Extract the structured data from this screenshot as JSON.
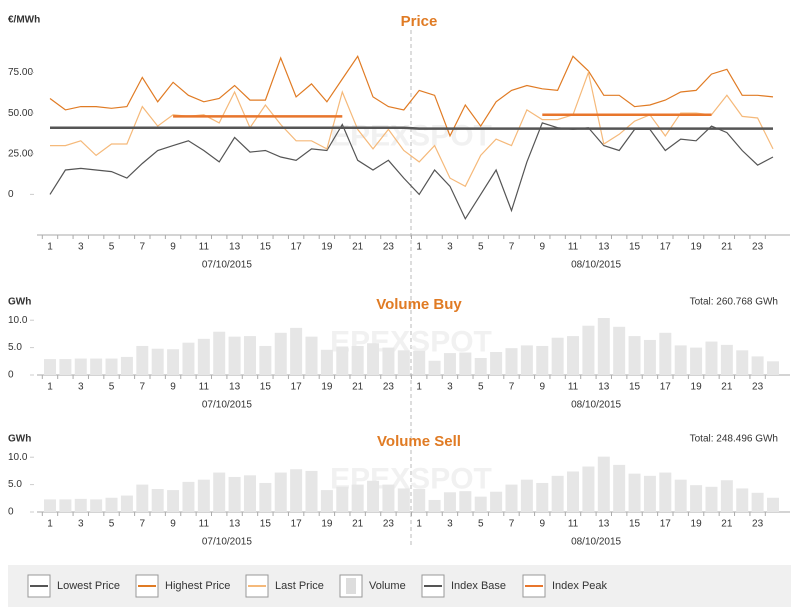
{
  "chart_data": [
    {
      "type": "line",
      "title": "Price",
      "y_label": "€/MWh",
      "watermark": "EPEXSPOT",
      "categories": [
        "1",
        null,
        "3",
        null,
        "5",
        null,
        "7",
        null,
        "9",
        null,
        "11",
        null,
        "13",
        null,
        "15",
        null,
        "17",
        null,
        "19",
        null,
        "21",
        null,
        "23",
        null,
        "1",
        null,
        "3",
        null,
        "5",
        null,
        "7",
        null,
        "9",
        null,
        "11",
        null,
        "13",
        null,
        "15",
        null,
        "17",
        null,
        "19",
        null,
        "21",
        null,
        "23",
        null
      ],
      "groups": [
        "07/10/2015",
        "08/10/2015"
      ],
      "ylim": [
        -25,
        95
      ],
      "yticks": [
        0,
        {
          "value": 25,
          "label": "25.00"
        },
        {
          "value": 50,
          "label": "50.00"
        },
        {
          "value": 75,
          "label": "75.00"
        }
      ],
      "series": [
        {
          "name": "Lowest Price",
          "color": "#555555",
          "values": [
            0,
            15,
            16,
            15,
            14,
            10,
            19,
            27,
            30,
            33,
            27,
            20,
            35,
            26,
            27,
            23,
            21,
            28,
            27,
            43,
            21,
            15,
            21,
            10,
            0,
            15,
            5,
            -15,
            0,
            15,
            -10,
            20,
            44,
            41,
            40,
            41,
            30,
            27,
            40,
            40,
            27,
            34,
            33,
            42,
            38,
            27,
            18,
            23
          ]
        },
        {
          "name": "Highest Price",
          "color": "#e07b24",
          "values": [
            59,
            52,
            54,
            54,
            53,
            54,
            72,
            57,
            69,
            61,
            57,
            59,
            67,
            58,
            58,
            84,
            60,
            68,
            57,
            71,
            85,
            60,
            54,
            52,
            64,
            61,
            36,
            55,
            42,
            57,
            64,
            67,
            65,
            64,
            85,
            76,
            61,
            61,
            54,
            55,
            58,
            63,
            64,
            74,
            77,
            61,
            61,
            60
          ]
        },
        {
          "name": "Last Price",
          "color": "#f5b97a",
          "values": [
            30,
            30,
            33,
            24,
            31,
            31,
            54,
            42,
            49,
            48,
            49,
            44,
            63,
            41,
            55,
            43,
            33,
            33,
            28,
            63,
            40,
            28,
            40,
            27,
            20,
            30,
            10,
            5,
            24,
            34,
            30,
            52,
            46,
            46,
            49,
            75,
            31,
            37,
            45,
            49,
            36,
            50,
            50,
            49,
            61,
            48,
            47,
            28
          ]
        },
        {
          "name": "Index Base",
          "color": "#555555",
          "values": [
            41,
            41,
            41,
            41,
            41,
            41,
            41,
            41,
            41,
            41,
            41,
            41,
            41,
            41,
            41,
            41,
            41,
            41,
            41,
            41,
            41,
            41,
            41,
            41,
            40.5,
            40.5,
            40.5,
            40.5,
            40.5,
            40.5,
            40.5,
            40.5,
            40.5,
            40.5,
            40.5,
            40.5,
            40.5,
            40.5,
            40.5,
            40.5,
            40.5,
            40.5,
            40.5,
            40.5,
            40.5,
            40.5,
            40.5,
            40.5
          ]
        },
        {
          "name": "Index Peak",
          "color": "#e8762c",
          "values": [
            null,
            null,
            null,
            null,
            null,
            null,
            null,
            null,
            48,
            48,
            48,
            48,
            48,
            48,
            48,
            48,
            48,
            48,
            48,
            48,
            null,
            null,
            null,
            null,
            null,
            null,
            null,
            null,
            null,
            null,
            null,
            null,
            49,
            49,
            49,
            49,
            49,
            49,
            49,
            49,
            49,
            49,
            49,
            49,
            null,
            null,
            null,
            null
          ]
        }
      ]
    },
    {
      "type": "bar",
      "title": "Volume Buy",
      "y_label": "GWh",
      "watermark": "EPEXSPOT",
      "annotation": "Total: 260.768 GWh",
      "categories": [
        "1",
        null,
        "3",
        null,
        "5",
        null,
        "7",
        null,
        "9",
        null,
        "11",
        null,
        "13",
        null,
        "15",
        null,
        "17",
        null,
        "19",
        null,
        "21",
        null,
        "23",
        null,
        "1",
        null,
        "3",
        null,
        "5",
        null,
        "7",
        null,
        "9",
        null,
        "11",
        null,
        "13",
        null,
        "15",
        null,
        "17",
        null,
        "19",
        null,
        "21",
        null,
        "23",
        null
      ],
      "groups": [
        "07/10/2015",
        "08/10/2015"
      ],
      "ylim": [
        0,
        11.5
      ],
      "yticks": [
        0,
        {
          "value": 5,
          "label": "5.0"
        },
        {
          "value": 10,
          "label": "10.0"
        }
      ],
      "series": [
        {
          "name": "Volume",
          "color": "#e6e6e6",
          "values": [
            2.9,
            2.9,
            3.0,
            3.0,
            3.0,
            3.3,
            5.3,
            4.8,
            4.7,
            5.9,
            6.6,
            7.9,
            7.0,
            7.1,
            5.3,
            7.7,
            8.6,
            7.0,
            4.6,
            5.2,
            5.3,
            5.8,
            5.0,
            4.5,
            4.4,
            2.6,
            4.0,
            4.1,
            3.1,
            4.2,
            4.9,
            5.4,
            5.3,
            6.8,
            7.1,
            9.0,
            10.4,
            8.8,
            7.1,
            6.4,
            7.7,
            5.4,
            5.0,
            6.1,
            5.5,
            4.5,
            3.4,
            2.5
          ]
        }
      ]
    },
    {
      "type": "bar",
      "title": "Volume Sell",
      "y_label": "GWh",
      "watermark": "EPEXSPOT",
      "annotation": "Total: 248.496 GWh",
      "categories": [
        "1",
        null,
        "3",
        null,
        "5",
        null,
        "7",
        null,
        "9",
        null,
        "11",
        null,
        "13",
        null,
        "15",
        null,
        "17",
        null,
        "19",
        null,
        "21",
        null,
        "23",
        null,
        "1",
        null,
        "3",
        null,
        "5",
        null,
        "7",
        null,
        "9",
        null,
        "11",
        null,
        "13",
        null,
        "15",
        null,
        "17",
        null,
        "19",
        null,
        "21",
        null,
        "23",
        null
      ],
      "groups": [
        "07/10/2015",
        "08/10/2015"
      ],
      "ylim": [
        0,
        11.5
      ],
      "yticks": [
        0,
        {
          "value": 5,
          "label": "5.0"
        },
        {
          "value": 10,
          "label": "10.0"
        }
      ],
      "series": [
        {
          "color": "#e6e6e6",
          "values": [
            2.3,
            2.3,
            2.4,
            2.3,
            2.6,
            3.0,
            5.0,
            4.2,
            4.0,
            5.5,
            5.9,
            7.2,
            6.4,
            6.7,
            5.3,
            7.2,
            7.8,
            7.5,
            4.0,
            4.6,
            5.0,
            5.7,
            5.0,
            4.3,
            4.2,
            2.2,
            3.6,
            3.8,
            2.8,
            3.7,
            5.0,
            5.9,
            5.3,
            6.6,
            7.4,
            8.3,
            10.1,
            8.6,
            7.0,
            6.6,
            7.2,
            5.9,
            4.9,
            4.6,
            5.8,
            4.3,
            3.5,
            2.6
          ]
        }
      ]
    }
  ]
}
